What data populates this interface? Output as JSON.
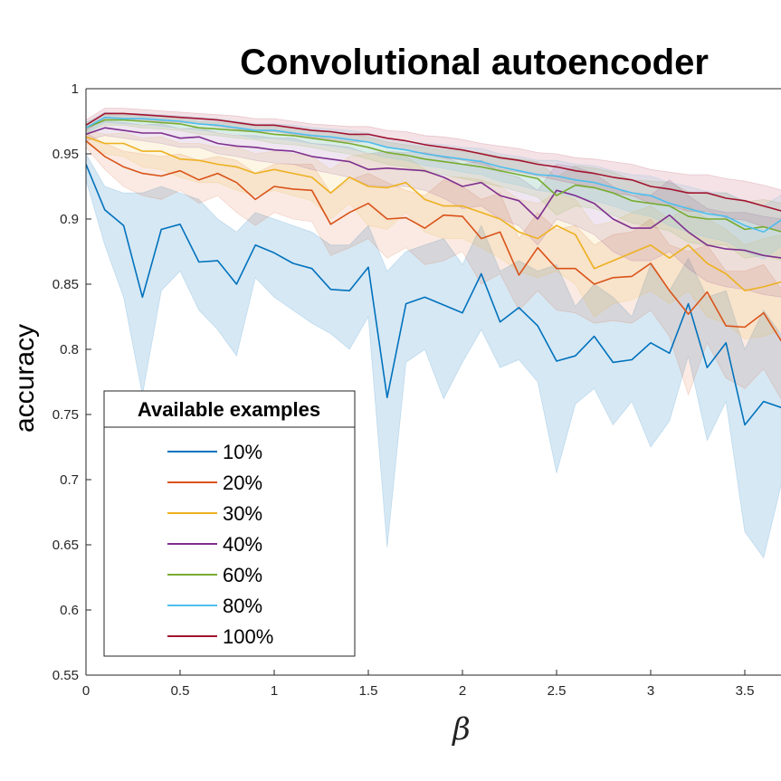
{
  "chart_data": {
    "type": "line",
    "title": "Convolutional autoencoder",
    "xlabel": "β",
    "ylabel": "accuracy",
    "xlim": [
      0,
      3.7
    ],
    "ylim": [
      0.55,
      1
    ],
    "xticks": [
      0,
      0.5,
      1,
      1.5,
      2,
      2.5,
      3,
      3.5
    ],
    "xtick_labels": [
      "0",
      "0.5",
      "1",
      "1.5",
      "2",
      "2.5",
      "3",
      "3.5"
    ],
    "yticks": [
      0.55,
      0.6,
      0.65,
      0.7,
      0.75,
      0.8,
      0.85,
      0.9,
      0.95,
      1
    ],
    "ytick_labels": [
      "0.55",
      "0.6",
      "0.65",
      "0.7",
      "0.75",
      "0.8",
      "0.85",
      "0.9",
      "0.95",
      "1"
    ],
    "grid": false,
    "legend": {
      "title": "Available examples",
      "placement": "bottom-left"
    },
    "x": [
      0,
      0.1,
      0.2,
      0.3,
      0.4,
      0.5,
      0.6,
      0.7,
      0.8,
      0.9,
      1.0,
      1.1,
      1.2,
      1.3,
      1.4,
      1.5,
      1.6,
      1.7,
      1.8,
      1.9,
      2.0,
      2.1,
      2.2,
      2.3,
      2.4,
      2.5,
      2.6,
      2.7,
      2.8,
      2.9,
      3.0,
      3.1,
      3.2,
      3.3,
      3.4,
      3.5,
      3.6,
      3.7
    ],
    "series": [
      {
        "name": "10%",
        "color": "#0072BD",
        "values": [
          0.942,
          0.907,
          0.895,
          0.84,
          0.892,
          0.896,
          0.867,
          0.868,
          0.85,
          0.88,
          0.874,
          0.866,
          0.862,
          0.846,
          0.845,
          0.863,
          0.763,
          0.835,
          0.84,
          0.834,
          0.828,
          0.858,
          0.821,
          0.832,
          0.818,
          0.791,
          0.795,
          0.81,
          0.79,
          0.792,
          0.805,
          0.797,
          0.835,
          0.786,
          0.805,
          0.742,
          0.76,
          0.755
        ],
        "lower": [
          0.93,
          0.88,
          0.84,
          0.765,
          0.845,
          0.86,
          0.83,
          0.815,
          0.795,
          0.855,
          0.84,
          0.83,
          0.82,
          0.812,
          0.8,
          0.825,
          0.648,
          0.79,
          0.8,
          0.762,
          0.79,
          0.815,
          0.786,
          0.792,
          0.775,
          0.705,
          0.758,
          0.77,
          0.742,
          0.76,
          0.725,
          0.745,
          0.795,
          0.73,
          0.76,
          0.66,
          0.64,
          0.7
        ],
        "upper": [
          0.95,
          0.925,
          0.92,
          0.92,
          0.925,
          0.92,
          0.915,
          0.9,
          0.89,
          0.905,
          0.9,
          0.895,
          0.89,
          0.88,
          0.88,
          0.895,
          0.86,
          0.875,
          0.88,
          0.885,
          0.865,
          0.895,
          0.86,
          0.868,
          0.86,
          0.865,
          0.833,
          0.85,
          0.84,
          0.825,
          0.865,
          0.845,
          0.87,
          0.84,
          0.845,
          0.8,
          0.83,
          0.81
        ]
      },
      {
        "name": "20%",
        "color": "#D95319",
        "values": [
          0.96,
          0.948,
          0.94,
          0.935,
          0.933,
          0.937,
          0.93,
          0.935,
          0.928,
          0.915,
          0.925,
          0.923,
          0.922,
          0.896,
          0.905,
          0.912,
          0.9,
          0.901,
          0.893,
          0.903,
          0.902,
          0.885,
          0.89,
          0.857,
          0.878,
          0.862,
          0.862,
          0.85,
          0.855,
          0.856,
          0.866,
          0.845,
          0.827,
          0.844,
          0.818,
          0.817,
          0.828,
          0.805
        ],
        "lower": [
          0.955,
          0.938,
          0.925,
          0.918,
          0.915,
          0.922,
          0.912,
          0.918,
          0.905,
          0.895,
          0.905,
          0.9,
          0.898,
          0.872,
          0.878,
          0.885,
          0.87,
          0.878,
          0.865,
          0.868,
          0.875,
          0.85,
          0.858,
          0.83,
          0.845,
          0.83,
          0.828,
          0.82,
          0.822,
          0.82,
          0.83,
          0.81,
          0.765,
          0.805,
          0.778,
          0.77,
          0.785,
          0.76
        ],
        "upper": [
          0.966,
          0.958,
          0.952,
          0.95,
          0.948,
          0.95,
          0.945,
          0.948,
          0.945,
          0.935,
          0.942,
          0.942,
          0.942,
          0.92,
          0.93,
          0.935,
          0.928,
          0.922,
          0.918,
          0.93,
          0.925,
          0.915,
          0.92,
          0.885,
          0.905,
          0.892,
          0.895,
          0.88,
          0.888,
          0.89,
          0.9,
          0.88,
          0.875,
          0.88,
          0.86,
          0.86,
          0.865,
          0.845
        ]
      },
      {
        "name": "30%",
        "color": "#EDB120",
        "values": [
          0.963,
          0.958,
          0.958,
          0.952,
          0.952,
          0.946,
          0.945,
          0.942,
          0.94,
          0.935,
          0.938,
          0.935,
          0.932,
          0.92,
          0.932,
          0.925,
          0.924,
          0.928,
          0.915,
          0.91,
          0.91,
          0.905,
          0.9,
          0.89,
          0.885,
          0.895,
          0.888,
          0.862,
          0.868,
          0.874,
          0.88,
          0.87,
          0.88,
          0.866,
          0.858,
          0.845,
          0.848,
          0.852
        ],
        "lower": [
          0.958,
          0.95,
          0.948,
          0.94,
          0.938,
          0.932,
          0.928,
          0.928,
          0.922,
          0.918,
          0.922,
          0.918,
          0.914,
          0.9,
          0.912,
          0.895,
          0.892,
          0.905,
          0.89,
          0.885,
          0.885,
          0.878,
          0.87,
          0.86,
          0.855,
          0.86,
          0.85,
          0.825,
          0.835,
          0.838,
          0.845,
          0.835,
          0.845,
          0.825,
          0.82,
          0.808,
          0.81,
          0.815
        ],
        "upper": [
          0.968,
          0.965,
          0.966,
          0.962,
          0.963,
          0.958,
          0.958,
          0.955,
          0.955,
          0.95,
          0.952,
          0.95,
          0.948,
          0.938,
          0.948,
          0.95,
          0.95,
          0.948,
          0.938,
          0.932,
          0.932,
          0.93,
          0.925,
          0.915,
          0.912,
          0.92,
          0.915,
          0.895,
          0.898,
          0.905,
          0.91,
          0.9,
          0.91,
          0.9,
          0.892,
          0.88,
          0.885,
          0.888
        ]
      },
      {
        "name": "40%",
        "color": "#7E2F8E",
        "values": [
          0.965,
          0.97,
          0.968,
          0.966,
          0.966,
          0.962,
          0.963,
          0.958,
          0.956,
          0.955,
          0.953,
          0.952,
          0.948,
          0.946,
          0.944,
          0.938,
          0.939,
          0.938,
          0.937,
          0.932,
          0.925,
          0.928,
          0.918,
          0.914,
          0.9,
          0.922,
          0.918,
          0.912,
          0.9,
          0.893,
          0.893,
          0.903,
          0.89,
          0.88,
          0.877,
          0.876,
          0.872,
          0.87
        ],
        "lower": [
          0.96,
          0.964,
          0.962,
          0.96,
          0.958,
          0.955,
          0.955,
          0.95,
          0.948,
          0.945,
          0.943,
          0.942,
          0.938,
          0.935,
          0.932,
          0.926,
          0.925,
          0.925,
          0.922,
          0.916,
          0.908,
          0.91,
          0.9,
          0.895,
          0.88,
          0.9,
          0.895,
          0.888,
          0.875,
          0.868,
          0.868,
          0.875,
          0.862,
          0.852,
          0.848,
          0.846,
          0.842,
          0.84
        ],
        "upper": [
          0.97,
          0.975,
          0.974,
          0.972,
          0.973,
          0.969,
          0.97,
          0.966,
          0.964,
          0.964,
          0.962,
          0.962,
          0.958,
          0.957,
          0.955,
          0.95,
          0.952,
          0.951,
          0.951,
          0.948,
          0.942,
          0.945,
          0.936,
          0.932,
          0.922,
          0.942,
          0.94,
          0.935,
          0.925,
          0.918,
          0.918,
          0.93,
          0.918,
          0.908,
          0.905,
          0.905,
          0.902,
          0.9
        ]
      },
      {
        "name": "60%",
        "color": "#77AC30",
        "values": [
          0.97,
          0.976,
          0.976,
          0.975,
          0.974,
          0.973,
          0.97,
          0.969,
          0.968,
          0.967,
          0.965,
          0.964,
          0.962,
          0.96,
          0.958,
          0.955,
          0.951,
          0.949,
          0.946,
          0.944,
          0.942,
          0.94,
          0.937,
          0.934,
          0.931,
          0.918,
          0.926,
          0.924,
          0.92,
          0.914,
          0.912,
          0.91,
          0.902,
          0.9,
          0.9,
          0.892,
          0.894,
          0.89
        ],
        "lower": [
          0.966,
          0.972,
          0.972,
          0.97,
          0.969,
          0.968,
          0.965,
          0.964,
          0.962,
          0.961,
          0.958,
          0.957,
          0.955,
          0.952,
          0.95,
          0.946,
          0.942,
          0.94,
          0.936,
          0.934,
          0.931,
          0.928,
          0.925,
          0.921,
          0.917,
          0.903,
          0.91,
          0.908,
          0.903,
          0.897,
          0.894,
          0.891,
          0.882,
          0.88,
          0.88,
          0.87,
          0.872,
          0.868
        ],
        "upper": [
          0.974,
          0.98,
          0.98,
          0.979,
          0.978,
          0.977,
          0.975,
          0.974,
          0.973,
          0.972,
          0.971,
          0.97,
          0.968,
          0.967,
          0.965,
          0.963,
          0.959,
          0.957,
          0.955,
          0.953,
          0.952,
          0.951,
          0.948,
          0.946,
          0.944,
          0.932,
          0.941,
          0.939,
          0.936,
          0.93,
          0.929,
          0.928,
          0.921,
          0.919,
          0.92,
          0.913,
          0.915,
          0.912
        ]
      },
      {
        "name": "80%",
        "color": "#4DBEEE",
        "values": [
          0.97,
          0.978,
          0.977,
          0.977,
          0.976,
          0.975,
          0.973,
          0.972,
          0.97,
          0.968,
          0.968,
          0.966,
          0.964,
          0.963,
          0.961,
          0.959,
          0.955,
          0.953,
          0.95,
          0.948,
          0.946,
          0.944,
          0.94,
          0.937,
          0.934,
          0.933,
          0.93,
          0.928,
          0.924,
          0.92,
          0.918,
          0.912,
          0.908,
          0.904,
          0.902,
          0.895,
          0.89,
          0.9
        ],
        "lower": [
          0.966,
          0.974,
          0.973,
          0.973,
          0.971,
          0.97,
          0.968,
          0.967,
          0.965,
          0.962,
          0.962,
          0.96,
          0.958,
          0.956,
          0.954,
          0.951,
          0.947,
          0.945,
          0.941,
          0.939,
          0.936,
          0.934,
          0.929,
          0.926,
          0.922,
          0.92,
          0.917,
          0.914,
          0.91,
          0.905,
          0.902,
          0.895,
          0.89,
          0.886,
          0.883,
          0.875,
          0.869,
          0.88
        ],
        "upper": [
          0.974,
          0.982,
          0.981,
          0.981,
          0.98,
          0.979,
          0.978,
          0.977,
          0.975,
          0.973,
          0.973,
          0.972,
          0.97,
          0.969,
          0.968,
          0.966,
          0.962,
          0.96,
          0.958,
          0.957,
          0.955,
          0.954,
          0.95,
          0.948,
          0.945,
          0.945,
          0.942,
          0.941,
          0.937,
          0.934,
          0.933,
          0.928,
          0.925,
          0.921,
          0.92,
          0.914,
          0.91,
          0.919
        ]
      },
      {
        "name": "100%",
        "color": "#A2142F",
        "values": [
          0.972,
          0.981,
          0.981,
          0.98,
          0.979,
          0.978,
          0.977,
          0.976,
          0.974,
          0.972,
          0.972,
          0.97,
          0.968,
          0.967,
          0.965,
          0.965,
          0.962,
          0.96,
          0.957,
          0.955,
          0.953,
          0.95,
          0.947,
          0.945,
          0.942,
          0.94,
          0.937,
          0.935,
          0.932,
          0.93,
          0.925,
          0.923,
          0.92,
          0.92,
          0.916,
          0.914,
          0.91,
          0.906
        ],
        "lower": [
          0.968,
          0.977,
          0.977,
          0.976,
          0.975,
          0.974,
          0.973,
          0.971,
          0.969,
          0.967,
          0.967,
          0.965,
          0.963,
          0.961,
          0.959,
          0.959,
          0.955,
          0.953,
          0.95,
          0.947,
          0.945,
          0.942,
          0.938,
          0.936,
          0.933,
          0.93,
          0.927,
          0.924,
          0.92,
          0.918,
          0.912,
          0.91,
          0.906,
          0.906,
          0.901,
          0.899,
          0.894,
          0.89
        ],
        "upper": [
          0.976,
          0.985,
          0.985,
          0.984,
          0.983,
          0.982,
          0.981,
          0.98,
          0.979,
          0.977,
          0.977,
          0.975,
          0.973,
          0.972,
          0.971,
          0.971,
          0.968,
          0.967,
          0.964,
          0.963,
          0.961,
          0.958,
          0.956,
          0.954,
          0.951,
          0.95,
          0.947,
          0.946,
          0.944,
          0.942,
          0.938,
          0.936,
          0.934,
          0.934,
          0.931,
          0.929,
          0.926,
          0.922
        ]
      }
    ]
  }
}
